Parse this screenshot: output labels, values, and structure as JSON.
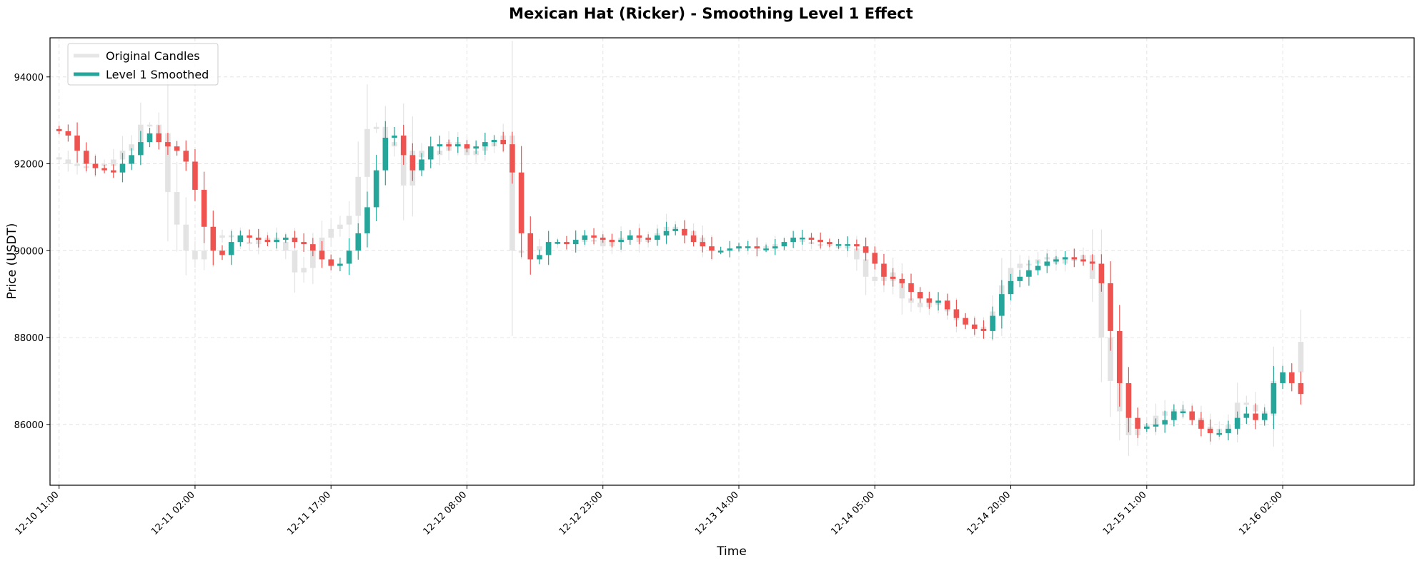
{
  "chart_data": {
    "type": "candlestick",
    "title": "Mexican Hat (Ricker) - Smoothing Level 1 Effect",
    "xlabel": "Time",
    "ylabel": "Price (USDT)",
    "ylim": [
      84600,
      94900
    ],
    "y_ticks": [
      86000,
      88000,
      90000,
      92000,
      94000
    ],
    "y_tick_labels": [
      "86000",
      "88000",
      "90000",
      "92000",
      "94000"
    ],
    "x_tick_indices": [
      0,
      15,
      30,
      45,
      60,
      75,
      90,
      105,
      120,
      135
    ],
    "x_tick_labels": [
      "12-10 11:00",
      "12-11 02:00",
      "12-11 17:00",
      "12-12 08:00",
      "12-12 23:00",
      "12-13 14:00",
      "12-14 05:00",
      "12-14 20:00",
      "12-15 11:00",
      "12-16 02:00"
    ],
    "x_range": [
      -1,
      149.5
    ],
    "grid": true,
    "legend": {
      "position": "top-left",
      "entries": [
        {
          "label": "Original Candles",
          "color": "#e6e6e6"
        },
        {
          "label": "Level 1 Smoothed",
          "color": "#26a69a"
        }
      ]
    },
    "colors": {
      "up": "#26a69a",
      "down": "#ef5350",
      "original": "#e3e3e3"
    },
    "smoothed_close": [
      92750,
      92650,
      92300,
      92000,
      91900,
      91850,
      91800,
      92000,
      92200,
      92500,
      92700,
      92500,
      92400,
      92300,
      92050,
      91400,
      90550,
      90000,
      89900,
      90200,
      90350,
      90300,
      90250,
      90200,
      90250,
      90300,
      90200,
      90150,
      90000,
      89800,
      89650,
      89700,
      90000,
      90400,
      91000,
      91850,
      92600,
      92650,
      92200,
      91850,
      92100,
      92400,
      92450,
      92400,
      92450,
      92350,
      92400,
      92500,
      92550,
      92450,
      91800,
      90400,
      89800,
      89900,
      90200,
      90200,
      90150,
      90250,
      90350,
      90300,
      90250,
      90200,
      90250,
      90350,
      90300,
      90250,
      90350,
      90450,
      90500,
      90350,
      90200,
      90100,
      90000,
      90000,
      90050,
      90100,
      90100,
      90050,
      90050,
      90100,
      90200,
      90300,
      90300,
      90250,
      90200,
      90150,
      90150,
      90150,
      90100,
      89950,
      89700,
      89400,
      89350,
      89250,
      89050,
      88900,
      88800,
      88850,
      88650,
      88450,
      88300,
      88200,
      88150,
      88500,
      89000,
      89300,
      89400,
      89550,
      89650,
      89750,
      89800,
      89850,
      89800,
      89750,
      89700,
      89250,
      88150,
      86950,
      86150,
      85900,
      85950,
      86000,
      86100,
      86300,
      86300,
      86100,
      85900,
      85800,
      85800,
      85900,
      86150,
      86250,
      86100,
      86250,
      86950,
      87200,
      86950,
      86700
    ],
    "original_close": [
      92100,
      92000,
      91950,
      91900,
      92000,
      91950,
      92100,
      92300,
      92450,
      92900,
      92900,
      92700,
      91350,
      90600,
      90000,
      89800,
      90000,
      90300,
      90350,
      90350,
      90200,
      90150,
      90250,
      90300,
      90200,
      90000,
      89500,
      89600,
      90000,
      90300,
      90500,
      90600,
      90800,
      91700,
      92800,
      92850,
      92400,
      92500,
      91500,
      92300,
      92150,
      92200,
      92300,
      92500,
      92400,
      92200,
      92300,
      92400,
      92500,
      92650,
      90000,
      89950,
      90000,
      90100,
      90150,
      90200,
      90200,
      90200,
      90250,
      90250,
      90100,
      90200,
      90300,
      90350,
      90200,
      90300,
      90400,
      90550,
      90500,
      90450,
      90300,
      90100,
      90000,
      90000,
      90050,
      90100,
      90050,
      90100,
      90100,
      90150,
      90200,
      90250,
      90200,
      90150,
      90150,
      90100,
      90100,
      90050,
      89800,
      89400,
      89300,
      89500,
      89300,
      88900,
      88800,
      88700,
      88800,
      88750,
      88600,
      88400,
      88300,
      88200,
      88250,
      88600,
      89200,
      89600,
      89700,
      89700,
      89800,
      89850,
      89700,
      89800,
      89800,
      89900,
      89350,
      88000,
      87000,
      86300,
      85750,
      85900,
      86000,
      86200,
      86300,
      86350,
      86300,
      86150,
      85950,
      85800,
      85900,
      86000,
      86500,
      86450,
      86300,
      86200,
      87000,
      87200,
      87200,
      87900
    ]
  }
}
